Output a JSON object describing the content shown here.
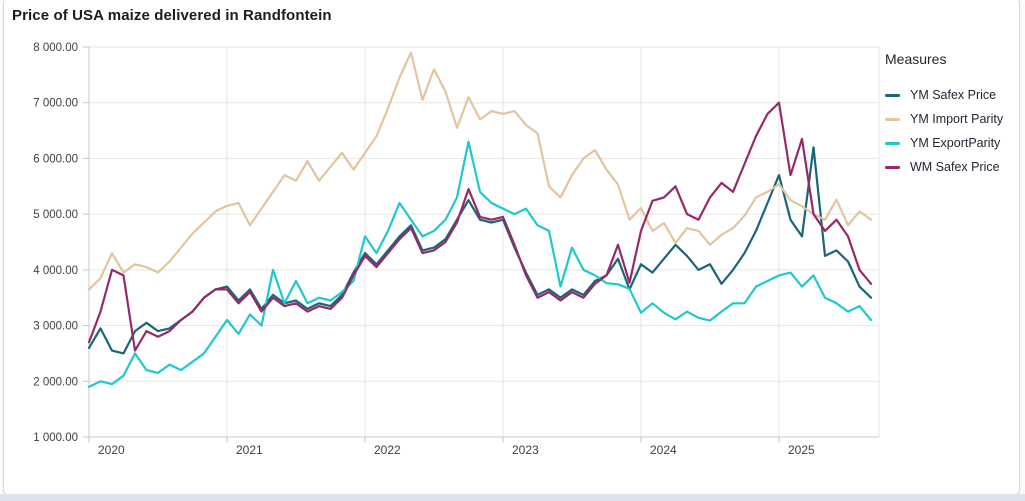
{
  "title": "Price of USA maize delivered in Randfontein",
  "legend": {
    "title": "Measures",
    "items": [
      {
        "label": "YM Safex Price",
        "color": "#1b6578"
      },
      {
        "label": "YM Import Parity",
        "color": "#e2c59e"
      },
      {
        "label": "YM ExportParity",
        "color": "#1fc8cd"
      },
      {
        "label": "WM Safex Price",
        "color": "#962a66"
      }
    ]
  },
  "axes": {
    "y_tick_labels": [
      "8 000.00",
      "7 000.00",
      "6 000.00",
      "5 000.00",
      "4 000.00",
      "3 000.00",
      "2 000.00",
      "1 000.00"
    ],
    "x_tick_labels": [
      "2020",
      "2021",
      "2022",
      "2023",
      "2024",
      "2025"
    ]
  },
  "colors": {
    "grid": "#e5e5e5",
    "axis_line": "#c9c9c9",
    "axis_text": "#3f3f46",
    "card_border": "#d6d6d6",
    "bottom_strip": "#dbe3ee"
  },
  "chart_data": {
    "type": "line",
    "title": "Price of USA maize delivered in Randfontein",
    "xlabel": "",
    "ylabel": "",
    "ylim": [
      1000,
      8000
    ],
    "y_ticks": [
      8000,
      7000,
      6000,
      5000,
      4000,
      3000,
      2000,
      1000
    ],
    "x_year_ticks": [
      "2020",
      "2021",
      "2022",
      "2023",
      "2024",
      "2025"
    ],
    "grid": true,
    "legend_position": "right",
    "x": [
      "2020-01",
      "2020-02",
      "2020-03",
      "2020-04",
      "2020-05",
      "2020-06",
      "2020-07",
      "2020-08",
      "2020-09",
      "2020-10",
      "2020-11",
      "2020-12",
      "2021-01",
      "2021-02",
      "2021-03",
      "2021-04",
      "2021-05",
      "2021-06",
      "2021-07",
      "2021-08",
      "2021-09",
      "2021-10",
      "2021-11",
      "2021-12",
      "2022-01",
      "2022-02",
      "2022-03",
      "2022-04",
      "2022-05",
      "2022-06",
      "2022-07",
      "2022-08",
      "2022-09",
      "2022-10",
      "2022-11",
      "2022-12",
      "2023-01",
      "2023-02",
      "2023-03",
      "2023-04",
      "2023-05",
      "2023-06",
      "2023-07",
      "2023-08",
      "2023-09",
      "2023-10",
      "2023-11",
      "2023-12",
      "2024-01",
      "2024-02",
      "2024-03",
      "2024-04",
      "2024-05",
      "2024-06",
      "2024-07",
      "2024-08",
      "2024-09",
      "2024-10",
      "2024-11",
      "2024-12",
      "2025-01",
      "2025-02",
      "2025-03",
      "2025-04",
      "2025-05",
      "2025-06",
      "2025-07",
      "2025-08",
      "2025-09"
    ],
    "series": [
      {
        "name": "YM Safex Price",
        "color": "#1b6578",
        "values": [
          2600,
          2950,
          2550,
          2500,
          2900,
          3050,
          2900,
          2950,
          3100,
          3250,
          3500,
          3650,
          3700,
          3450,
          3650,
          3300,
          3550,
          3400,
          3450,
          3300,
          3400,
          3350,
          3550,
          3950,
          4300,
          4100,
          4350,
          4600,
          4800,
          4350,
          4400,
          4550,
          4900,
          5250,
          4900,
          4850,
          4900,
          4400,
          3950,
          3550,
          3650,
          3500,
          3650,
          3550,
          3800,
          3900,
          4200,
          3650,
          4100,
          3950,
          4200,
          4450,
          4250,
          4000,
          4100,
          3750,
          4000,
          4300,
          4700,
          5200,
          5700,
          4900,
          4600,
          6200,
          4250,
          4350,
          4150,
          3700,
          3500
        ]
      },
      {
        "name": "YM Import Parity",
        "color": "#e2c59e",
        "values": [
          3650,
          3850,
          4300,
          3950,
          4100,
          4050,
          3950,
          4150,
          4400,
          4650,
          4850,
          5050,
          5150,
          5200,
          4800,
          5100,
          5400,
          5700,
          5600,
          5950,
          5600,
          5850,
          6100,
          5800,
          6100,
          6400,
          6900,
          7450,
          7900,
          7050,
          7600,
          7200,
          6550,
          7100,
          6700,
          6850,
          6800,
          6850,
          6600,
          6450,
          5500,
          5300,
          5700,
          6000,
          6150,
          5800,
          5530,
          4900,
          5110,
          4700,
          4840,
          4480,
          4750,
          4700,
          4450,
          4630,
          4750,
          4970,
          5300,
          5400,
          5540,
          5250,
          5140,
          5000,
          4900,
          5260,
          4800,
          5050,
          4900
        ]
      },
      {
        "name": "YM ExportParity",
        "color": "#1fc8cd",
        "values": [
          1900,
          2000,
          1950,
          2100,
          2500,
          2200,
          2150,
          2300,
          2200,
          2350,
          2500,
          2800,
          3100,
          2850,
          3200,
          3000,
          4000,
          3400,
          3800,
          3400,
          3500,
          3450,
          3600,
          3800,
          4600,
          4300,
          4700,
          5200,
          4900,
          4600,
          4700,
          4900,
          5300,
          6300,
          5400,
          5200,
          5100,
          5000,
          5100,
          4800,
          4700,
          3700,
          4400,
          4000,
          3900,
          3760,
          3740,
          3660,
          3230,
          3400,
          3230,
          3110,
          3250,
          3140,
          3090,
          3250,
          3400,
          3400,
          3700,
          3800,
          3900,
          3950,
          3700,
          3900,
          3500,
          3400,
          3250,
          3350,
          3100
        ]
      },
      {
        "name": "WM Safex Price",
        "color": "#962a66",
        "values": [
          2700,
          3250,
          4000,
          3900,
          2550,
          2900,
          2800,
          2900,
          3100,
          3250,
          3500,
          3650,
          3650,
          3400,
          3600,
          3250,
          3500,
          3350,
          3400,
          3250,
          3350,
          3300,
          3500,
          3900,
          4250,
          4050,
          4300,
          4550,
          4750,
          4300,
          4350,
          4500,
          4850,
          5450,
          4950,
          4900,
          4950,
          4450,
          3900,
          3500,
          3600,
          3450,
          3600,
          3500,
          3750,
          3900,
          4450,
          3770,
          4700,
          5240,
          5300,
          5500,
          5000,
          4900,
          5300,
          5560,
          5400,
          5900,
          6400,
          6800,
          7000,
          5700,
          6350,
          5000,
          4700,
          4900,
          4600,
          4000,
          3750
        ]
      }
    ]
  }
}
